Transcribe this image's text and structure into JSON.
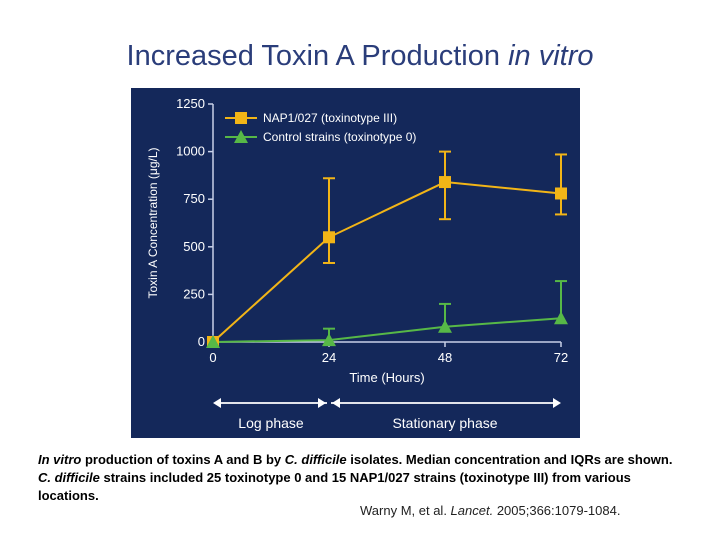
{
  "slide": {
    "title_main": "Increased Toxin A Production ",
    "title_em": "in vitro"
  },
  "chart_data": {
    "type": "line",
    "title": "",
    "xlabel": "Time (Hours)",
    "ylabel": "Toxin A Concentration (μg/L)",
    "x": [
      0,
      24,
      48,
      72
    ],
    "xticks": [
      "0",
      "24",
      "48",
      "72"
    ],
    "yticks": [
      "0",
      "250",
      "500",
      "750",
      "1000",
      "1250"
    ],
    "ylim": [
      0,
      1250
    ],
    "xlim": [
      0,
      72
    ],
    "legend_position": "top-left",
    "series": [
      {
        "name": "NAP1/027 (toxinotype III)",
        "marker": "square",
        "color": "#f2b517",
        "values": [
          0,
          550,
          840,
          780
        ],
        "iqr_low": [
          null,
          415,
          645,
          670
        ],
        "iqr_high": [
          null,
          860,
          1000,
          985
        ]
      },
      {
        "name": "Control strains (toxinotype 0)",
        "marker": "triangle",
        "color": "#57b847",
        "values": [
          0,
          10,
          80,
          125
        ],
        "iqr_low": [
          null,
          null,
          null,
          null
        ],
        "iqr_high": [
          null,
          70,
          200,
          320
        ]
      }
    ],
    "phases": [
      {
        "label": "Log phase",
        "from": 0,
        "to": 24
      },
      {
        "label": "Stationary phase",
        "from": 24,
        "to": 72
      }
    ],
    "colors": {
      "background": "#14285a",
      "axis": "#c8d0e8",
      "text": "#ffffff"
    }
  },
  "caption": {
    "p1_em": "In vitro",
    "p1": " production of toxins A and B by ",
    "p2_em": "C. difficile",
    "p2": " isolates. Median concentration and IQRs are shown. ",
    "p3_em": "C. difficile",
    "p3": " strains included 25 toxinotype 0 and 15 NAP1/027 strains (toxinotype III) from various locations."
  },
  "citation": {
    "authors": "Warny M, et al. ",
    "journal": "Lancet.",
    "details": " 2005;366:1079-1084."
  }
}
